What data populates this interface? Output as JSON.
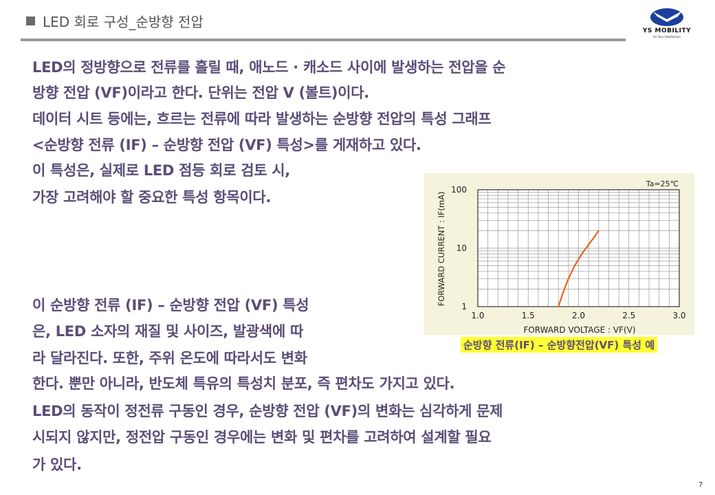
{
  "header": {
    "title": "LED 회로 구성_순방향 전압",
    "logo_text": "YS MOBILITY",
    "logo_subtext": "for Your Satisfaction",
    "brand_color": "#1c3f9c"
  },
  "body": {
    "lines": [
      "LED의 정방향으로 전류를 흘릴 때, 애노드 · 캐소드 사이에 발생하는 전압을 순",
      "방향 전압 (VF)이라고 한다. 단위는 전압 V (볼트)이다.",
      "데이터 시트 등에는, 흐르는 전류에 따라 발생하는 순방향 전압의 특성 그래프",
      "<순방향 전류 (IF) – 순방향 전압 (VF) 특성>를 게재하고 있다.",
      "이 특성은, 실제로 LED 점등 회로 검토 시,",
      "가장 고려해야 할 중요한 특성 항목이다.",
      "이 순방향 전류 (IF) – 순방향 전압 (VF) 특성",
      "은, LED 소자의 재질 및 사이즈, 발광색에 따",
      "라 달라진다.  또한, 주위 온도에 따라서도 변화",
      "한다. 뿐만 아니라, 반도체 특유의 특성치 분포, 즉 편차도 가지고 있다.",
      "LED의 동작이 정전류 구동인 경우, 순방향 전압 (VF)의 변화는 심각하게 문제",
      "시되지 않지만, 정전압 구동인 경우에는 변화 및 편차를 고려하여 설계할 필요",
      "가 있다."
    ]
  },
  "chart_data": {
    "type": "line",
    "xlabel": "FORWARD VOLTAGE : VF(V)",
    "ylabel": "FORWARD CURRENT : IF(mA)",
    "annotation": "Ta=25℃",
    "xlim": [
      1.0,
      3.0
    ],
    "ylim": [
      1,
      100
    ],
    "yscale": "log",
    "grid": true,
    "xticks": [
      "1.0",
      "1.5",
      "2.0",
      "2.5",
      "3.0"
    ],
    "yticks": [
      "1",
      "10",
      "100"
    ],
    "series": [
      {
        "x": [
          1.8,
          1.85,
          1.9,
          1.95,
          2.0,
          2.05,
          2.1,
          2.15,
          2.2
        ],
        "y": [
          1,
          1.8,
          3,
          4.6,
          6.5,
          8.8,
          11.5,
          15,
          20
        ],
        "color": "#e8641e"
      }
    ],
    "caption": "순방향 전류(IF) – 순방향전압(VF) 특성 예"
  },
  "footer": {
    "page_number": "7"
  }
}
